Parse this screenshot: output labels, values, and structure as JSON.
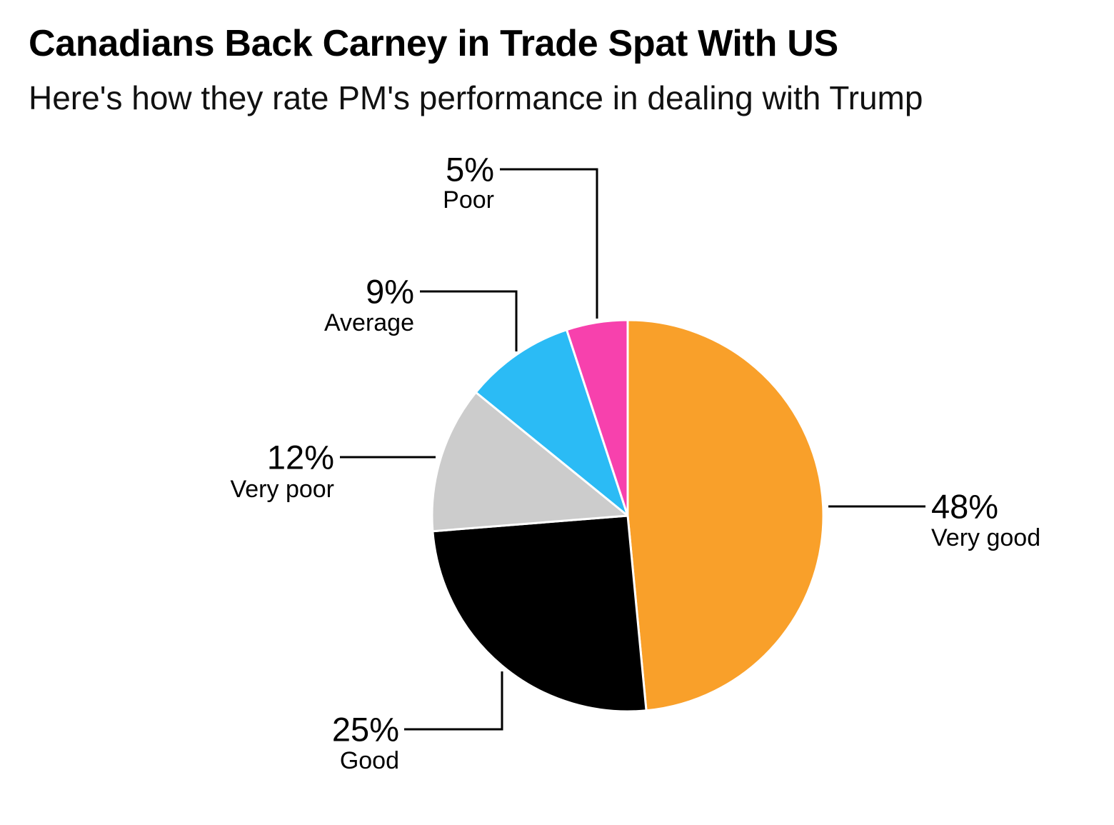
{
  "title": "Canadians Back Carney in Trade Spat With US",
  "subtitle": "Here's how they rate PM's performance in dealing with Trump",
  "chart_data": {
    "type": "pie",
    "title": "Canadians Back Carney in Trade Spat With US",
    "subtitle": "Here's how they rate PM's performance in dealing with Trump",
    "slices": [
      {
        "label": "Very good",
        "value": 48,
        "value_label": "48%",
        "color": "#F9A02A"
      },
      {
        "label": "Good",
        "value": 25,
        "value_label": "25%",
        "color": "#000000"
      },
      {
        "label": "Very poor",
        "value": 12,
        "value_label": "12%",
        "color": "#CCCCCC"
      },
      {
        "label": "Average",
        "value": 9,
        "value_label": "9%",
        "color": "#2BBBF5"
      },
      {
        "label": "Poor",
        "value": 5,
        "value_label": "5%",
        "color": "#F741AD"
      }
    ],
    "start_angle": "12 o'clock",
    "direction": "clockwise",
    "legend": "none",
    "labels": "outside with leader lines"
  }
}
